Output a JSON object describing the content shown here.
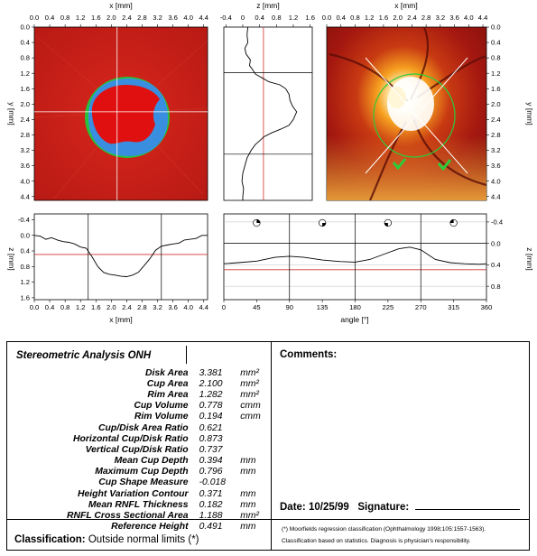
{
  "colors": {
    "fundus_red": "#c8201a",
    "cup_red": "#e01010",
    "rim_blue": "#3a8ee0",
    "rim_green": "#27c23a",
    "reference_line": "#d03030"
  },
  "chart_data": [
    {
      "id": "reflectance-image",
      "type": "heatmap",
      "xlabel": "x [mm]",
      "ylabel": "y [mm]",
      "x_ticks": [
        "0.0",
        "0.4",
        "0.8",
        "1.2",
        "1.6",
        "2.0",
        "2.4",
        "2.8",
        "3.2",
        "3.6",
        "4.0",
        "4.4"
      ],
      "y_ticks": [
        "0.0",
        "0.4",
        "0.8",
        "1.2",
        "1.6",
        "2.0",
        "2.4",
        "2.8",
        "3.2",
        "3.6",
        "4.0",
        "4.4"
      ],
      "xlim": [
        0,
        4.5
      ],
      "ylim": [
        0,
        4.5
      ],
      "crosshair": {
        "x": 2.15,
        "y": 2.2
      }
    },
    {
      "id": "z-profile-vertical",
      "type": "line",
      "xlabel": "z [mm]",
      "x_ticks": [
        "-0.4",
        "0",
        "0.4",
        "0.8",
        "1.2",
        "1.6"
      ],
      "xlim": [
        -0.45,
        1.65
      ],
      "ylim": [
        0,
        4.5
      ],
      "reference_z": 0.491,
      "markers_y": [
        1.18,
        3.3
      ],
      "points": [
        [
          0.12,
          0.0
        ],
        [
          0.1,
          0.2
        ],
        [
          0.12,
          0.4
        ],
        [
          0.05,
          0.55
        ],
        [
          0.08,
          0.7
        ],
        [
          0.18,
          0.85
        ],
        [
          0.16,
          1.0
        ],
        [
          0.23,
          1.1
        ],
        [
          0.3,
          1.22
        ],
        [
          0.46,
          1.32
        ],
        [
          0.62,
          1.42
        ],
        [
          0.88,
          1.5
        ],
        [
          1.02,
          1.6
        ],
        [
          1.1,
          1.75
        ],
        [
          1.12,
          1.9
        ],
        [
          1.18,
          2.05
        ],
        [
          1.28,
          2.2
        ],
        [
          1.2,
          2.4
        ],
        [
          1.1,
          2.55
        ],
        [
          0.9,
          2.65
        ],
        [
          0.68,
          2.75
        ],
        [
          0.5,
          2.85
        ],
        [
          0.4,
          2.95
        ],
        [
          0.3,
          3.05
        ],
        [
          0.2,
          3.2
        ],
        [
          0.1,
          3.4
        ],
        [
          0.05,
          3.6
        ],
        [
          0.0,
          3.8
        ],
        [
          -0.02,
          4.0
        ],
        [
          0.02,
          4.2
        ],
        [
          0.0,
          4.4
        ],
        [
          0.0,
          4.5
        ]
      ]
    },
    {
      "id": "topography-image",
      "type": "heatmap",
      "xlabel": "x [mm]",
      "ylabel": "y [mm]",
      "x_ticks": [
        "0.0",
        "0.4",
        "0.8",
        "1.2",
        "1.6",
        "2.0",
        "2.4",
        "2.8",
        "3.2",
        "3.6",
        "4.0",
        "4.4"
      ],
      "y_ticks": [
        "0.0",
        "0.4",
        "0.8",
        "1.2",
        "1.6",
        "2.0",
        "2.4",
        "2.8",
        "3.2",
        "3.6",
        "4.0",
        "4.4"
      ],
      "xlim": [
        0,
        4.5
      ],
      "ylim": [
        0,
        4.5
      ]
    },
    {
      "id": "z-profile-horizontal",
      "type": "line",
      "xlabel": "x [mm]",
      "ylabel": "z [mm]",
      "x_ticks": [
        "0.0",
        "0.4",
        "0.8",
        "1.2",
        "1.6",
        "2.0",
        "2.4",
        "2.8",
        "3.2",
        "3.6",
        "4.0",
        "4.4"
      ],
      "y_ticks": [
        "-0.4",
        "0.0",
        "0.4",
        "0.8",
        "1.2",
        "1.6"
      ],
      "xlim": [
        0,
        4.5
      ],
      "ylim": [
        -0.55,
        1.65
      ],
      "reference_z": 0.491,
      "markers_x": [
        1.4,
        3.3
      ],
      "points": [
        [
          0.0,
          0.0
        ],
        [
          0.15,
          0.02
        ],
        [
          0.3,
          0.1
        ],
        [
          0.45,
          0.06
        ],
        [
          0.6,
          0.12
        ],
        [
          0.75,
          0.16
        ],
        [
          0.9,
          0.18
        ],
        [
          1.05,
          0.22
        ],
        [
          1.2,
          0.3
        ],
        [
          1.35,
          0.33
        ],
        [
          1.5,
          0.55
        ],
        [
          1.65,
          0.8
        ],
        [
          1.8,
          0.95
        ],
        [
          1.95,
          1.0
        ],
        [
          2.1,
          1.02
        ],
        [
          2.25,
          1.05
        ],
        [
          2.4,
          1.06
        ],
        [
          2.55,
          1.02
        ],
        [
          2.7,
          0.95
        ],
        [
          2.85,
          0.78
        ],
        [
          3.0,
          0.6
        ],
        [
          3.15,
          0.38
        ],
        [
          3.3,
          0.28
        ],
        [
          3.45,
          0.25
        ],
        [
          3.6,
          0.22
        ],
        [
          3.75,
          0.2
        ],
        [
          3.9,
          0.12
        ],
        [
          4.05,
          0.1
        ],
        [
          4.2,
          0.08
        ],
        [
          4.35,
          0.0
        ],
        [
          4.5,
          0.0
        ]
      ]
    },
    {
      "id": "rnfl-contour",
      "type": "line",
      "xlabel": "angle [°]",
      "ylabel": "z [mm]",
      "x_ticks": [
        "0",
        "45",
        "90",
        "135",
        "180",
        "225",
        "270",
        "315",
        "360"
      ],
      "y_ticks": [
        "-0.4",
        "0.0",
        "0.4",
        "0.8"
      ],
      "xlim": [
        0,
        360
      ],
      "ylim": [
        -0.55,
        1.05
      ],
      "reference_z": 0.491,
      "sector_lines": [
        90,
        180,
        270
      ],
      "sector_icons": [
        45,
        135,
        225,
        315
      ],
      "points": [
        [
          0,
          0.38
        ],
        [
          20,
          0.36
        ],
        [
          45,
          0.33
        ],
        [
          70,
          0.26
        ],
        [
          90,
          0.24
        ],
        [
          110,
          0.26
        ],
        [
          135,
          0.31
        ],
        [
          160,
          0.34
        ],
        [
          180,
          0.35
        ],
        [
          200,
          0.3
        ],
        [
          220,
          0.2
        ],
        [
          240,
          0.1
        ],
        [
          255,
          0.07
        ],
        [
          270,
          0.12
        ],
        [
          290,
          0.3
        ],
        [
          310,
          0.36
        ],
        [
          330,
          0.38
        ],
        [
          350,
          0.39
        ],
        [
          360,
          0.38
        ]
      ]
    }
  ],
  "report": {
    "title": "Stereometric Analysis ONH",
    "parameters": [
      {
        "name": "Disk Area",
        "value": "3.381",
        "unit": "mm²"
      },
      {
        "name": "Cup Area",
        "value": "2.100",
        "unit": "mm²"
      },
      {
        "name": "Rim Area",
        "value": "1.282",
        "unit": "mm²"
      },
      {
        "name": "Cup Volume",
        "value": "0.778",
        "unit": "cmm"
      },
      {
        "name": "Rim Volume",
        "value": "0.194",
        "unit": "cmm"
      },
      {
        "name": "Cup/Disk Area Ratio",
        "value": "0.621",
        "unit": ""
      },
      {
        "name": "Horizontal Cup/Disk Ratio",
        "value": "0.873",
        "unit": ""
      },
      {
        "name": "Vertical Cup/Disk Ratio",
        "value": "0.737",
        "unit": ""
      },
      {
        "name": "Mean Cup Depth",
        "value": "0.394",
        "unit": "mm"
      },
      {
        "name": "Maximum Cup Depth",
        "value": "0.796",
        "unit": "mm"
      },
      {
        "name": "Cup Shape Measure",
        "value": "-0.018",
        "unit": ""
      },
      {
        "name": "Height Variation Contour",
        "value": "0.371",
        "unit": "mm"
      },
      {
        "name": "Mean RNFL Thickness",
        "value": "0.182",
        "unit": "mm"
      },
      {
        "name": "RNFL Cross Sectional Area",
        "value": "1.188",
        "unit": "mm²"
      },
      {
        "name": "Reference Height",
        "value": "0.491",
        "unit": "mm"
      }
    ],
    "comments_label": "Comments:",
    "date_label": "Date:",
    "date_value": "10/25/99",
    "signature_label": "Signature:",
    "classification_label": "Classification:",
    "classification_value": "Outside normal limits (*)",
    "footnote_1": "(*) Moorfields regression classification (Ophthalmology 1998;105:1557-1563).",
    "footnote_2": "Classification based on statistics. Diagnosis is physician's responsibility."
  }
}
